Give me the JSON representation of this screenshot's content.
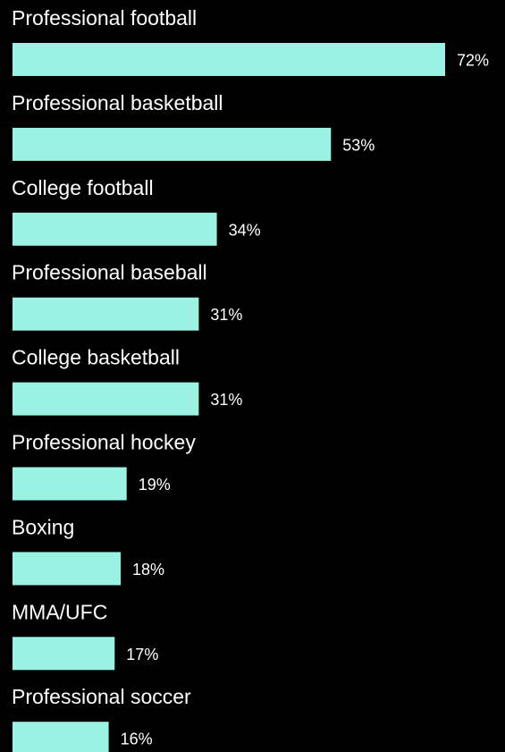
{
  "chart_data": {
    "type": "bar",
    "orientation": "horizontal",
    "categories": [
      "Professional football",
      "Professional basketball",
      "College football",
      "Professional baseball",
      "College basketball",
      "Professional hockey",
      "Boxing",
      "MMA/UFC",
      "Professional soccer"
    ],
    "values": [
      72,
      53,
      34,
      31,
      31,
      19,
      18,
      17,
      16
    ],
    "value_labels": [
      "72%",
      "53%",
      "34%",
      "31%",
      "31%",
      "19%",
      "18%",
      "17%",
      "16%"
    ],
    "unit": "%",
    "title": "",
    "xlabel": "",
    "ylabel": "",
    "grid": false,
    "legend": "none",
    "bar_color": "#99f2e2",
    "background": "#000000",
    "text_color": "#ffffff"
  }
}
